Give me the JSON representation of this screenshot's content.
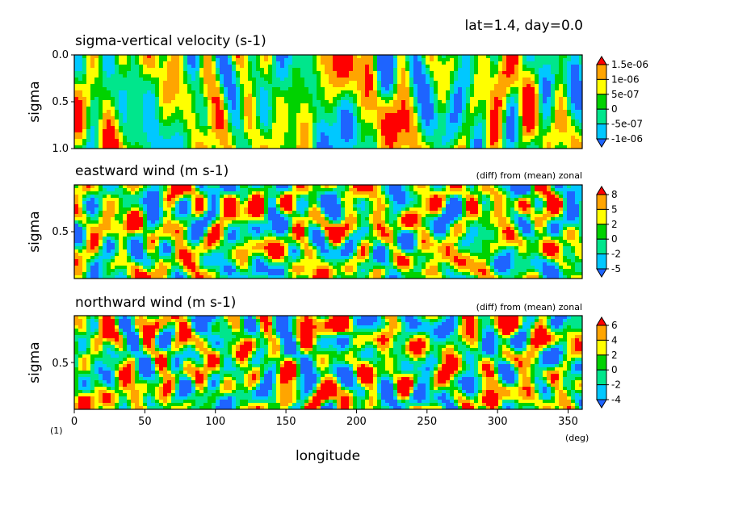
{
  "header": {
    "info": "lat=1.4, day=0.0"
  },
  "colors": [
    "#1e64ff",
    "#00c8ff",
    "#00e68c",
    "#00d200",
    "#ffff00",
    "#ffa500",
    "#ff0000"
  ],
  "chart_data": [
    {
      "type": "heatmap",
      "title": "sigma-vertical velocity (s-1)",
      "subtitle": "",
      "ylabel": "sigma",
      "xlabel": "",
      "xlim": [
        0,
        360
      ],
      "ylim": [
        1.0,
        0.0
      ],
      "y_ticks": [
        "0.0",
        "0.5",
        "1.0"
      ],
      "colorbar_labels": [
        "1.5e-06",
        "1e-06",
        "5e-07",
        "0",
        "-5e-07",
        "-1e-06"
      ],
      "levels": [
        -1.5e-06,
        -1e-06,
        -5e-07,
        0,
        5e-07,
        1e-06,
        1.5e-06
      ],
      "seed": 11
    },
    {
      "type": "heatmap",
      "title": "eastward wind (m s-1)",
      "subtitle": "(diff) from (mean) zonal",
      "ylabel": "sigma",
      "xlabel": "",
      "xlim": [
        0,
        360
      ],
      "y_ticks": [
        "0.5"
      ],
      "colorbar_labels": [
        "8",
        "5",
        "2",
        "0",
        "-2",
        "-5"
      ],
      "levels": [
        -8,
        -5,
        -2,
        0,
        2,
        5,
        8
      ],
      "seed": 23
    },
    {
      "type": "heatmap",
      "title": "northward wind (m s-1)",
      "subtitle": "(diff) from (mean) zonal",
      "ylabel": "sigma",
      "xlabel": "longitude",
      "xlim": [
        0,
        360
      ],
      "x_ticks": [
        "0",
        "50",
        "100",
        "150",
        "200",
        "250",
        "300",
        "350"
      ],
      "x_unit": "(deg)",
      "corner_label": "(1)",
      "y_ticks": [
        "0.5"
      ],
      "colorbar_labels": [
        "6",
        "4",
        "2",
        "0",
        "-2",
        "-4"
      ],
      "levels": [
        -6,
        -4,
        -2,
        0,
        2,
        4,
        6
      ],
      "seed": 37
    }
  ]
}
